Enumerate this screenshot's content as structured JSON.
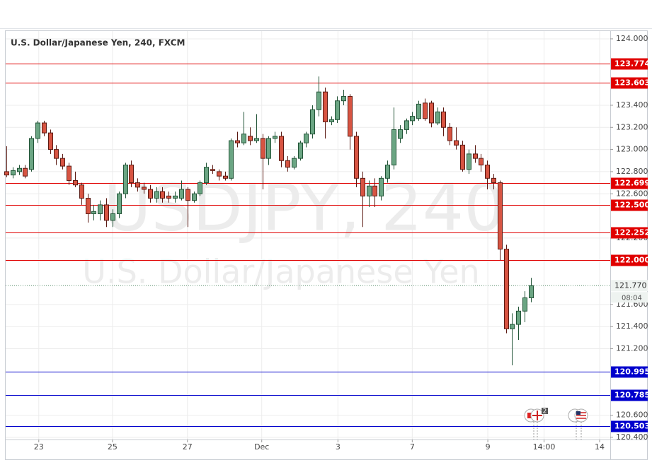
{
  "chart_data": {
    "type": "candlestick",
    "title": "U.S. Dollar/Japanese Yen, 240, FXCM",
    "watermark": "USDJPY, 240",
    "watermark_subtitle": "U.S. Dollar/Japanese Yen",
    "x": [
      0,
      1,
      2,
      3,
      4,
      5,
      6,
      7,
      8,
      9,
      10,
      11,
      12,
      13,
      14,
      15,
      16,
      17,
      18,
      19,
      20,
      21,
      22,
      23,
      24,
      25,
      26,
      27,
      28,
      29,
      30,
      31,
      32,
      33,
      34,
      35,
      36,
      37,
      38,
      39,
      40,
      41,
      42,
      43,
      44,
      45,
      46,
      47,
      48,
      49,
      50,
      51,
      52,
      53,
      54,
      55,
      56,
      57,
      58,
      59,
      60,
      61,
      62,
      63,
      64,
      65,
      66,
      67,
      68,
      69,
      70,
      71,
      72,
      73,
      74,
      75,
      76,
      77,
      78,
      79,
      80,
      81,
      82,
      83,
      84
    ],
    "open": [
      122.8,
      122.77,
      122.8,
      122.83,
      122.82,
      123.1,
      123.24,
      123.15,
      123.0,
      122.92,
      122.85,
      122.72,
      122.68,
      122.56,
      122.42,
      122.42,
      122.5,
      122.36,
      122.42,
      122.6,
      122.86,
      122.7,
      122.66,
      122.64,
      122.56,
      122.62,
      122.58,
      122.56,
      122.56,
      122.64,
      122.54,
      122.6,
      122.7,
      122.82,
      122.8,
      122.76,
      122.74,
      123.08,
      123.06,
      123.12,
      123.08,
      123.1,
      122.92,
      123.1,
      123.12,
      122.9,
      122.84,
      122.92,
      123.06,
      123.14,
      123.36,
      123.52,
      123.25,
      123.27,
      123.44,
      123.48,
      123.12,
      122.74,
      122.58,
      122.67,
      122.58,
      122.74,
      122.86,
      123.1,
      123.18,
      123.26,
      123.28,
      123.42,
      123.42,
      123.24,
      123.34,
      123.2,
      123.08,
      123.04,
      122.82,
      122.96,
      122.92,
      122.86,
      122.74,
      122.7,
      122.1,
      121.38,
      121.42,
      121.54,
      121.66
    ],
    "high": [
      123.03,
      122.84,
      122.86,
      122.86,
      123.12,
      123.26,
      123.26,
      123.18,
      123.04,
      122.96,
      122.88,
      122.8,
      122.7,
      122.6,
      122.5,
      122.54,
      122.56,
      122.46,
      122.62,
      122.88,
      122.9,
      122.74,
      122.7,
      122.68,
      122.66,
      122.66,
      122.62,
      122.62,
      122.72,
      122.66,
      122.62,
      122.72,
      122.88,
      122.86,
      122.82,
      122.8,
      123.1,
      123.16,
      123.34,
      123.2,
      123.32,
      123.14,
      123.12,
      123.16,
      123.16,
      122.94,
      122.94,
      123.08,
      123.16,
      123.4,
      123.66,
      123.56,
      123.3,
      123.48,
      123.54,
      123.5,
      123.16,
      122.8,
      122.72,
      122.74,
      122.76,
      122.9,
      123.38,
      123.22,
      123.28,
      123.34,
      123.44,
      123.46,
      123.44,
      123.38,
      123.38,
      123.24,
      123.2,
      123.08,
      123.0,
      123.04,
      122.96,
      122.9,
      122.78,
      122.72,
      122.14,
      121.52,
      121.58,
      121.72,
      121.84
    ],
    "low": [
      122.75,
      122.74,
      122.77,
      122.74,
      122.8,
      123.06,
      123.12,
      122.96,
      122.86,
      122.82,
      122.68,
      122.66,
      122.5,
      122.34,
      122.36,
      122.36,
      122.3,
      122.3,
      122.38,
      122.56,
      122.66,
      122.62,
      122.6,
      122.52,
      122.52,
      122.52,
      122.52,
      122.52,
      122.54,
      122.3,
      122.52,
      122.58,
      122.68,
      122.78,
      122.72,
      122.72,
      122.72,
      123.02,
      123.04,
      123.04,
      123.06,
      122.64,
      122.86,
      123.06,
      122.84,
      122.8,
      122.82,
      122.9,
      123.02,
      123.1,
      123.3,
      123.1,
      123.22,
      123.24,
      123.4,
      123.0,
      122.66,
      122.3,
      122.48,
      122.48,
      122.54,
      122.7,
      122.82,
      123.06,
      123.14,
      123.22,
      123.26,
      123.26,
      123.2,
      123.22,
      123.12,
      123.04,
      123.0,
      122.8,
      122.78,
      122.88,
      122.8,
      122.64,
      122.64,
      122.0,
      121.34,
      121.05,
      121.28,
      121.44,
      121.62
    ],
    "close": [
      122.77,
      122.81,
      122.83,
      122.76,
      123.1,
      123.24,
      123.15,
      123.0,
      122.92,
      122.85,
      122.72,
      122.68,
      122.56,
      122.42,
      122.44,
      122.5,
      122.36,
      122.42,
      122.6,
      122.86,
      122.7,
      122.66,
      122.64,
      122.56,
      122.62,
      122.56,
      122.56,
      122.58,
      122.64,
      122.54,
      122.6,
      122.7,
      122.84,
      122.81,
      122.76,
      122.74,
      123.08,
      123.06,
      123.14,
      123.08,
      123.1,
      122.92,
      123.1,
      123.12,
      122.9,
      122.84,
      122.92,
      123.06,
      123.14,
      123.36,
      123.52,
      123.25,
      123.27,
      123.44,
      123.48,
      123.12,
      122.74,
      122.58,
      122.67,
      122.58,
      122.74,
      122.86,
      123.18,
      123.18,
      123.26,
      123.3,
      123.41,
      123.28,
      123.24,
      123.34,
      123.2,
      123.08,
      123.04,
      122.82,
      122.96,
      122.92,
      122.86,
      122.74,
      122.7,
      122.1,
      121.38,
      121.42,
      121.54,
      121.66,
      121.77
    ],
    "up_color": "#6ba583",
    "down_color": "#d75442",
    "xlim": [
      -0.1,
      96.7
    ],
    "ylim": [
      120.38,
      124.07
    ],
    "xticks": [
      {
        "value": 5.2,
        "label": "23"
      },
      {
        "value": 17.0,
        "label": "25"
      },
      {
        "value": 29.0,
        "label": "27"
      },
      {
        "value": 40.9,
        "label": "Dec"
      },
      {
        "value": 53.1,
        "label": "3"
      },
      {
        "value": 65.0,
        "label": "7"
      },
      {
        "value": 77.1,
        "label": "9"
      },
      {
        "value": 86.1,
        "label": "14:00"
      },
      {
        "value": 95.0,
        "label": "14"
      }
    ],
    "yticks": [
      {
        "value": 124.0,
        "label": "124.000"
      },
      {
        "value": 123.4,
        "label": "123.400"
      },
      {
        "value": 123.2,
        "label": "123.200"
      },
      {
        "value": 123.0,
        "label": "123.000"
      },
      {
        "value": 122.8,
        "label": "122.800"
      },
      {
        "value": 122.6,
        "label": "122.600"
      },
      {
        "value": 122.2,
        "label": "122.200"
      },
      {
        "value": 121.6,
        "label": "121.600"
      },
      {
        "value": 121.4,
        "label": "121.400"
      },
      {
        "value": 121.2,
        "label": "121.200"
      },
      {
        "value": 120.6,
        "label": "120.600"
      },
      {
        "value": 120.4,
        "label": "120.400"
      }
    ],
    "grid": true,
    "levels": [
      {
        "value": 123.774,
        "label": "123.774",
        "color": "#e00000"
      },
      {
        "value": 123.603,
        "label": "123.603",
        "color": "#e00000"
      },
      {
        "value": 122.699,
        "label": "122.699",
        "color": "#e00000"
      },
      {
        "value": 122.5,
        "label": "122.500",
        "color": "#e00000"
      },
      {
        "value": 122.252,
        "label": "122.252",
        "color": "#e00000"
      },
      {
        "value": 122.0,
        "label": "122.000",
        "color": "#e00000"
      },
      {
        "value": 120.995,
        "label": "120.995",
        "color": "#0000cc"
      },
      {
        "value": 120.785,
        "label": "120.785",
        "color": "#0000cc"
      },
      {
        "value": 120.503,
        "label": "120.503",
        "color": "#0000cc"
      }
    ],
    "last_price": {
      "value": 121.77,
      "label": "121.770"
    },
    "countdown": "08:04",
    "event_badge": "2"
  }
}
